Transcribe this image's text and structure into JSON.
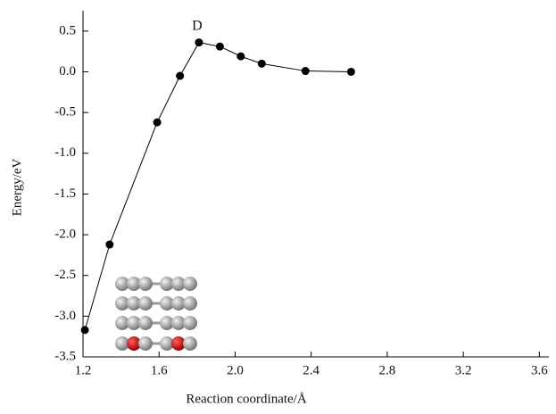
{
  "chart_data": {
    "type": "line",
    "x": [
      1.21,
      1.34,
      1.59,
      1.71,
      1.81,
      1.92,
      2.03,
      2.14,
      2.37,
      2.61
    ],
    "series": [
      {
        "color": "#000000",
        "values": [
          -3.17,
          -2.12,
          -0.62,
          -0.05,
          0.36,
          0.31,
          0.19,
          0.1,
          0.01,
          0.0
        ]
      }
    ],
    "annotation": "D",
    "xlabel": "Reaction coordinate/Å",
    "ylabel": "Energy/eV",
    "xlim": [
      1.2,
      3.65
    ],
    "ylim": [
      -3.5,
      0.75
    ],
    "xticks": [
      1.2,
      1.6,
      {
        "value": 2,
        "label": "2.0"
      },
      2.4,
      2.8,
      3.2,
      3.6
    ],
    "yticks": [
      0.5,
      {
        "value": 0,
        "label": "0.0"
      },
      -0.5,
      {
        "value": -1,
        "label": "-1.0"
      },
      -1.5,
      {
        "value": -2,
        "label": "-2.0"
      },
      -2.5,
      {
        "value": -3,
        "label": "-3.0"
      },
      -3.5
    ]
  }
}
